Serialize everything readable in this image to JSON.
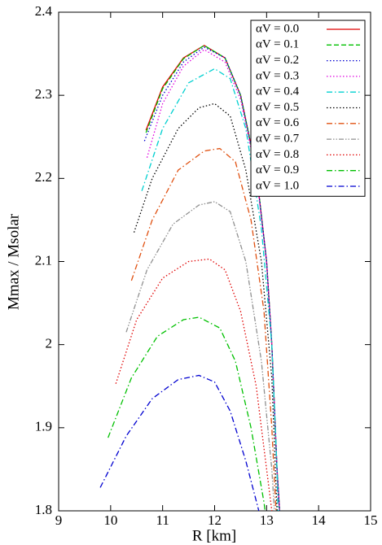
{
  "chart_data": {
    "type": "line",
    "xlabel": "R [km]",
    "ylabel": "Mmax / Msolar",
    "xlim": [
      9,
      15
    ],
    "xticks": [
      9,
      10,
      11,
      12,
      13,
      14,
      15
    ],
    "ylim": [
      1.8,
      2.4
    ],
    "yticks": [
      1.8,
      1.9,
      2,
      2.1,
      2.2,
      2.3,
      2.4
    ],
    "grid": false,
    "legend": "upper right",
    "series": [
      {
        "name": "αV = 0.0",
        "color": "#e00000",
        "dash": "solid",
        "x": [
          10.68,
          11.0,
          11.4,
          11.8,
          12.2,
          12.5,
          12.8,
          13.0,
          13.1,
          13.2,
          13.25
        ],
        "values": [
          2.258,
          2.31,
          2.345,
          2.36,
          2.345,
          2.3,
          2.21,
          2.1,
          2.0,
          1.85,
          1.8
        ]
      },
      {
        "name": "αV = 0.1",
        "color": "#00c000",
        "dash": "dashed",
        "x": [
          10.68,
          11.0,
          11.4,
          11.8,
          12.2,
          12.5,
          12.8,
          13.0,
          13.1,
          13.2,
          13.25
        ],
        "values": [
          2.255,
          2.308,
          2.344,
          2.36,
          2.345,
          2.3,
          2.21,
          2.1,
          2.0,
          1.85,
          1.8
        ]
      },
      {
        "name": "αV = 0.2",
        "color": "#0000d0",
        "dash": "dotted",
        "x": [
          10.65,
          11.0,
          11.4,
          11.8,
          12.2,
          12.5,
          12.8,
          13.0,
          13.1,
          13.2,
          13.25
        ],
        "values": [
          2.245,
          2.3,
          2.34,
          2.358,
          2.345,
          2.3,
          2.21,
          2.1,
          2.0,
          1.85,
          1.8
        ]
      },
      {
        "name": "αV = 0.3",
        "color": "#e000e0",
        "dash": "dotted",
        "x": [
          10.7,
          11.0,
          11.4,
          11.8,
          12.2,
          12.5,
          12.8,
          13.0,
          13.1,
          13.2,
          13.25
        ],
        "values": [
          2.225,
          2.29,
          2.335,
          2.355,
          2.34,
          2.295,
          2.205,
          2.1,
          2.0,
          1.85,
          1.8
        ]
      },
      {
        "name": "αV = 0.4",
        "color": "#00d0d0",
        "dash": "dashdot",
        "x": [
          10.6,
          11.0,
          11.5,
          12.0,
          12.3,
          12.6,
          12.9,
          13.1,
          13.2,
          13.22
        ],
        "values": [
          2.185,
          2.26,
          2.315,
          2.332,
          2.32,
          2.26,
          2.14,
          2.0,
          1.85,
          1.8
        ]
      },
      {
        "name": "αV = 0.5",
        "color": "#000000",
        "dash": "dotted",
        "x": [
          10.45,
          10.8,
          11.3,
          11.7,
          12.0,
          12.3,
          12.6,
          12.9,
          13.1,
          13.2
        ],
        "values": [
          2.135,
          2.2,
          2.26,
          2.285,
          2.29,
          2.275,
          2.21,
          2.1,
          1.96,
          1.8
        ]
      },
      {
        "name": "αV = 0.6",
        "color": "#e05010",
        "dash": "dashdot",
        "x": [
          10.4,
          10.8,
          11.3,
          11.8,
          12.1,
          12.4,
          12.7,
          12.95,
          13.1,
          13.18
        ],
        "values": [
          2.077,
          2.15,
          2.21,
          2.233,
          2.236,
          2.22,
          2.15,
          2.04,
          1.9,
          1.8
        ]
      },
      {
        "name": "αV = 0.7",
        "color": "#909090",
        "dash": "dashdotdot",
        "x": [
          10.3,
          10.7,
          11.2,
          11.7,
          12.0,
          12.3,
          12.6,
          12.9,
          13.1,
          13.15
        ],
        "values": [
          2.015,
          2.09,
          2.145,
          2.168,
          2.172,
          2.16,
          2.1,
          1.98,
          1.85,
          1.8
        ]
      },
      {
        "name": "αV = 0.8",
        "color": "#e00000",
        "dash": "dotted",
        "x": [
          10.1,
          10.5,
          11.0,
          11.5,
          11.9,
          12.2,
          12.5,
          12.8,
          13.0,
          13.1
        ],
        "values": [
          1.953,
          2.03,
          2.08,
          2.1,
          2.103,
          2.09,
          2.04,
          1.95,
          1.85,
          1.8
        ]
      },
      {
        "name": "αV = 0.9",
        "color": "#00c000",
        "dash": "dashdot",
        "x": [
          9.95,
          10.4,
          10.9,
          11.4,
          11.7,
          12.1,
          12.4,
          12.7,
          12.95,
          12.97
        ],
        "values": [
          1.888,
          1.96,
          2.01,
          2.03,
          2.033,
          2.02,
          1.98,
          1.9,
          1.81,
          1.8
        ]
      },
      {
        "name": "αV = 1.0",
        "color": "#0000d0",
        "dash": "dashdot",
        "x": [
          9.8,
          10.3,
          10.8,
          11.3,
          11.7,
          12.0,
          12.3,
          12.6,
          12.85
        ],
        "values": [
          1.828,
          1.89,
          1.935,
          1.958,
          1.963,
          1.955,
          1.92,
          1.86,
          1.8
        ]
      }
    ]
  }
}
